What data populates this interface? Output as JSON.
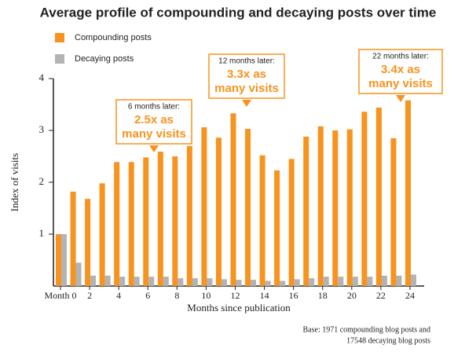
{
  "chart_data": {
    "type": "bar",
    "title": "Average profile of compounding and decaying posts over time",
    "x_label": "Months since publication",
    "y_label": "Index of visits",
    "categories": [
      "Month 0",
      null,
      "2",
      null,
      "4",
      null,
      "6",
      null,
      "8",
      null,
      "10",
      null,
      "12",
      null,
      "14",
      null,
      "16",
      null,
      "18",
      null,
      "20",
      null,
      "22",
      null,
      "24"
    ],
    "series": [
      {
        "name": "Compounding posts",
        "color": "#f7931e",
        "values": [
          1.0,
          1.82,
          1.68,
          1.98,
          2.39,
          2.39,
          2.48,
          2.59,
          2.5,
          2.7,
          3.06,
          2.86,
          3.33,
          3.03,
          2.52,
          2.23,
          2.45,
          2.88,
          3.08,
          3.0,
          3.02,
          3.36,
          3.44,
          2.85,
          3.58
        ]
      },
      {
        "name": "Decaying posts",
        "color": "#b3b3b3",
        "values": [
          1.0,
          0.45,
          0.2,
          0.2,
          0.18,
          0.18,
          0.18,
          0.18,
          0.15,
          0.15,
          0.15,
          0.13,
          0.12,
          0.12,
          0.1,
          0.1,
          0.13,
          0.15,
          0.18,
          0.18,
          0.18,
          0.18,
          0.2,
          0.2,
          0.22
        ]
      }
    ],
    "ylim": [
      0,
      4
    ],
    "yticks": [
      1,
      2,
      3,
      4
    ],
    "annotations": [
      {
        "heading": "6 months later:",
        "lines": [
          "2.5x as",
          "many visits"
        ]
      },
      {
        "heading": "12 months later:",
        "lines": [
          "3.3x as",
          "many visits"
        ]
      },
      {
        "heading": "22 months later:",
        "lines": [
          "3.4x as",
          "many visits"
        ]
      }
    ],
    "footnote": [
      "Base: 1971 compounding blog posts and",
      "17548 decaying blog posts"
    ]
  }
}
